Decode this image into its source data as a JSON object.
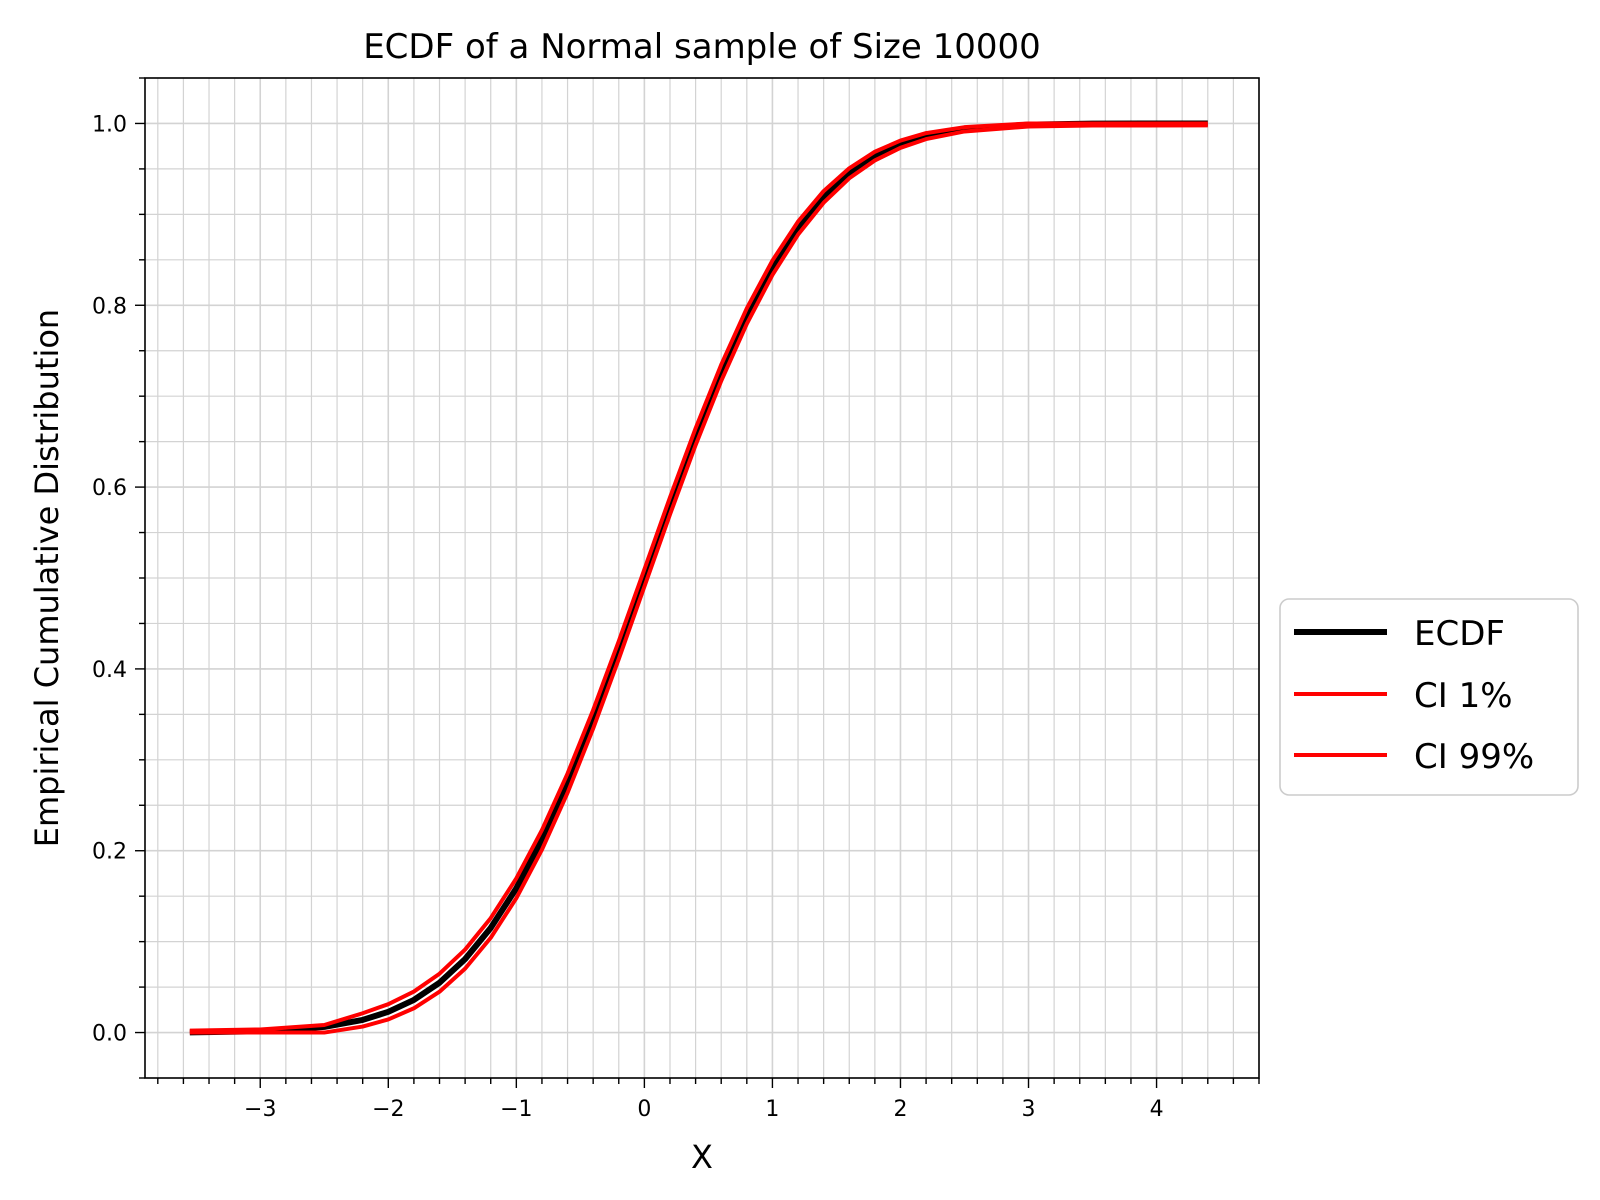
{
  "chart_data": {
    "type": "line",
    "title": "ECDF of a Normal sample of Size 10000",
    "xlabel": "X",
    "ylabel": "Empirical Cumulative Distribution",
    "xlim": [
      -3.9,
      4.8
    ],
    "ylim": [
      -0.05,
      1.05
    ],
    "x_ticks": [
      {
        "value": -3,
        "label": "−3"
      },
      {
        "value": -2,
        "label": "−2"
      },
      {
        "value": -1,
        "label": "−1"
      },
      {
        "value": 0,
        "label": "0"
      },
      {
        "value": 1,
        "label": "1"
      },
      {
        "value": 2,
        "label": "2"
      },
      {
        "value": 3,
        "label": "3"
      },
      {
        "value": 4,
        "label": "4"
      }
    ],
    "y_ticks": [
      {
        "value": 0.0,
        "label": "0.0"
      },
      {
        "value": 0.2,
        "label": "0.2"
      },
      {
        "value": 0.4,
        "label": "0.4"
      },
      {
        "value": 0.6,
        "label": "0.6"
      },
      {
        "value": 0.8,
        "label": "0.8"
      },
      {
        "value": 1.0,
        "label": "1.0"
      }
    ],
    "grid": true,
    "minor_grid": true,
    "legend_position": "outside right, center",
    "series": [
      {
        "name": "ECDF",
        "color": "#000000",
        "x": [
          -3.55,
          -3.0,
          -2.5,
          -2.2,
          -2.0,
          -1.8,
          -1.6,
          -1.4,
          -1.2,
          -1.0,
          -0.8,
          -0.6,
          -0.4,
          -0.2,
          0.0,
          0.2,
          0.4,
          0.6,
          0.8,
          1.0,
          1.2,
          1.4,
          1.6,
          1.8,
          2.0,
          2.2,
          2.5,
          3.0,
          3.5,
          4.4
        ],
        "y": [
          0.0002,
          0.0013,
          0.0062,
          0.0139,
          0.0228,
          0.0359,
          0.0548,
          0.0808,
          0.1151,
          0.1587,
          0.2119,
          0.2743,
          0.3446,
          0.4207,
          0.5,
          0.5793,
          0.6554,
          0.7257,
          0.7881,
          0.8413,
          0.8849,
          0.9192,
          0.9452,
          0.9641,
          0.9772,
          0.9861,
          0.9938,
          0.9987,
          0.9998,
          1.0
        ]
      },
      {
        "name": "CI 1%",
        "color": "#ff0000",
        "x": [
          -3.55,
          -3.0,
          -2.5,
          -2.2,
          -2.0,
          -1.8,
          -1.6,
          -1.4,
          -1.2,
          -1.0,
          -0.8,
          -0.6,
          -0.4,
          -0.2,
          0.0,
          0.2,
          0.4,
          0.6,
          0.8,
          1.0,
          1.2,
          1.4,
          1.6,
          1.8,
          2.0,
          2.2,
          2.5,
          3.0,
          3.5,
          4.4
        ],
        "y": [
          0.0,
          0.0,
          0.0,
          0.0066,
          0.0144,
          0.0267,
          0.0449,
          0.0703,
          0.1043,
          0.1478,
          0.2011,
          0.2637,
          0.3344,
          0.4109,
          0.4905,
          0.5699,
          0.6462,
          0.7168,
          0.7796,
          0.8334,
          0.8777,
          0.9128,
          0.9397,
          0.9593,
          0.9732,
          0.9828,
          0.9912,
          0.9966,
          0.9977,
          0.9979
        ]
      },
      {
        "name": "CI 99%",
        "color": "#ff0000",
        "x": [
          -3.55,
          -3.0,
          -2.5,
          -2.2,
          -2.0,
          -1.8,
          -1.6,
          -1.4,
          -1.2,
          -1.0,
          -0.8,
          -0.6,
          -0.4,
          -0.2,
          0.0,
          0.2,
          0.4,
          0.6,
          0.8,
          1.0,
          1.2,
          1.4,
          1.6,
          1.8,
          2.0,
          2.2,
          2.5,
          3.0,
          3.5,
          4.4
        ],
        "y": [
          0.0021,
          0.0034,
          0.0083,
          0.0212,
          0.0312,
          0.0451,
          0.0647,
          0.0913,
          0.1259,
          0.1696,
          0.2227,
          0.2849,
          0.3548,
          0.4305,
          0.5095,
          0.5887,
          0.6646,
          0.7346,
          0.7966,
          0.8492,
          0.8921,
          0.9256,
          0.9507,
          0.9689,
          0.9812,
          0.9894,
          0.9959,
          1.0,
          1.0,
          1.0
        ]
      }
    ]
  }
}
